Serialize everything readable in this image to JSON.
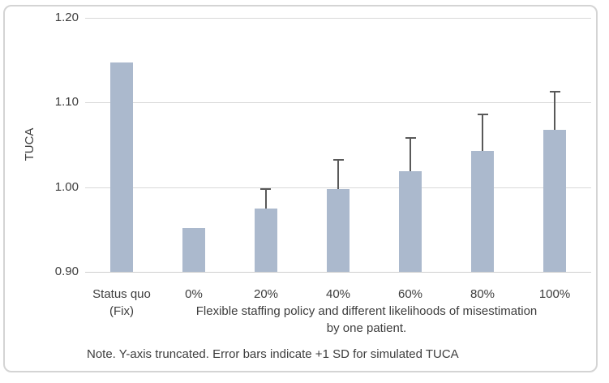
{
  "chart_data": {
    "type": "bar",
    "title": "",
    "ylabel": "TUCA",
    "xlabel": "Flexible staffing policy and different likelihoods of misestimation by one patient.",
    "xlabel_lines": [
      "Flexible staffing policy and different likelihoods of misestimation",
      "by one patient."
    ],
    "categories": [
      "Status quo (Fix)",
      "0%",
      "20%",
      "40%",
      "60%",
      "80%",
      "100%"
    ],
    "category_lines": [
      [
        "Status quo",
        "(Fix)"
      ],
      [
        "0%"
      ],
      [
        "20%"
      ],
      [
        "40%"
      ],
      [
        "60%"
      ],
      [
        "80%"
      ],
      [
        "100%"
      ]
    ],
    "values": [
      1.147,
      0.952,
      0.975,
      0.998,
      1.019,
      1.043,
      1.068
    ],
    "error_plus_sd": [
      null,
      null,
      0.023,
      0.034,
      0.039,
      0.043,
      0.045
    ],
    "ylim": [
      0.9,
      1.2
    ],
    "yticks": [
      0.9,
      1.0,
      1.1,
      1.2
    ],
    "ytick_labels": [
      "0.90",
      "1.00",
      "1.10",
      "1.20"
    ],
    "grid": "horizontal",
    "legend": "none",
    "y_axis_truncated": true,
    "note": "Note. Y-axis truncated. Error bars indicate +1 SD for simulated TUCA",
    "bar_color": "#abb9cd",
    "error_bar_color": "#595959",
    "gridline_color": "#d9d9d9",
    "text_color": "#3d3d3d",
    "border_color": "#d4d4d4"
  }
}
